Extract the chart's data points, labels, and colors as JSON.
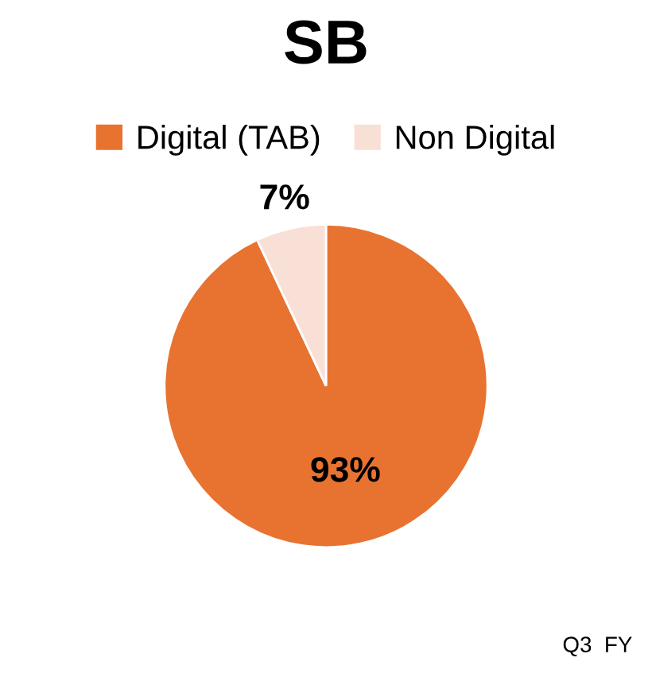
{
  "chart_data": {
    "type": "pie",
    "title": "SB",
    "categories": [
      "Digital (TAB)",
      "Non Digital"
    ],
    "values": [
      93,
      7
    ],
    "colors": [
      "#e87331",
      "#f9e0d6"
    ],
    "value_labels": [
      "93%",
      "7%"
    ],
    "legend": "top",
    "annotations": [
      "Q3  FY"
    ]
  }
}
